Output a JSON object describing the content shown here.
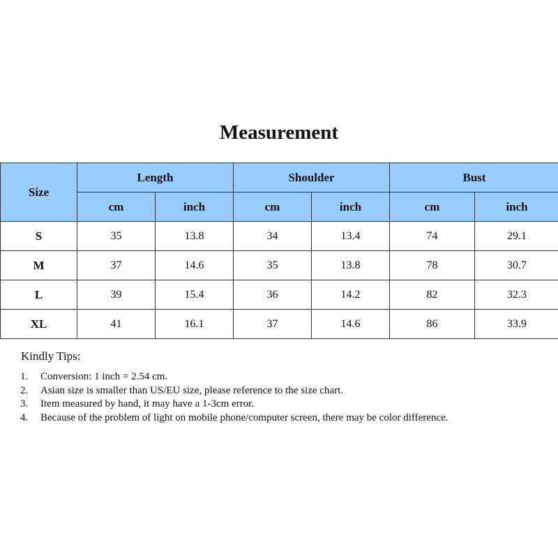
{
  "title": "Measurement",
  "table": {
    "size_header": "Size",
    "groups": [
      "Length",
      "Shoulder",
      "Bust"
    ],
    "units": [
      "cm",
      "inch",
      "cm",
      "inch",
      "cm",
      "inch"
    ],
    "rows": [
      {
        "size": "S",
        "values": [
          "35",
          "13.8",
          "34",
          "13.4",
          "74",
          "29.1"
        ]
      },
      {
        "size": "M",
        "values": [
          "37",
          "14.6",
          "35",
          "13.8",
          "78",
          "30.7"
        ]
      },
      {
        "size": "L",
        "values": [
          "39",
          "15.4",
          "36",
          "14.2",
          "82",
          "32.3"
        ]
      },
      {
        "size": "XL",
        "values": [
          "41",
          "16.1",
          "37",
          "14.6",
          "86",
          "33.9"
        ]
      }
    ],
    "header_color": "#99ccff"
  },
  "tips": {
    "heading": "Kindly Tips:",
    "items": [
      {
        "num": "1.",
        "text": "Conversion: 1 inch = 2.54 cm."
      },
      {
        "num": "2.",
        "text": "Asian size is smaller than US/EU size, please reference to the size chart."
      },
      {
        "num": "3.",
        "text": "Item measured by hand, it may have a 1-3cm error."
      },
      {
        "num": "4.",
        "text": "Because of the problem of light on mobile phone/computer screen, there may be color difference."
      }
    ]
  }
}
